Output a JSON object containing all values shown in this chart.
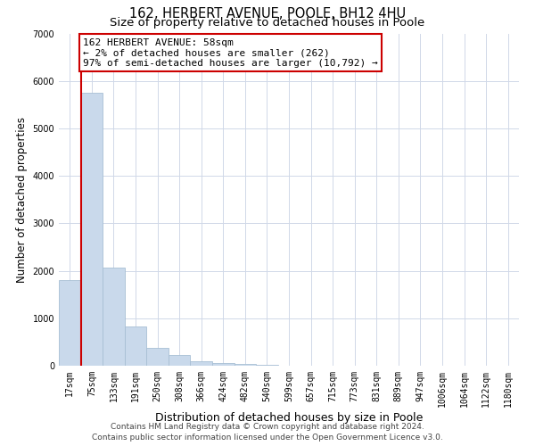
{
  "title": "162, HERBERT AVENUE, POOLE, BH12 4HU",
  "subtitle": "Size of property relative to detached houses in Poole",
  "xlabel": "Distribution of detached houses by size in Poole",
  "ylabel": "Number of detached properties",
  "bar_labels": [
    "17sqm",
    "75sqm",
    "133sqm",
    "191sqm",
    "250sqm",
    "308sqm",
    "366sqm",
    "424sqm",
    "482sqm",
    "540sqm",
    "599sqm",
    "657sqm",
    "715sqm",
    "773sqm",
    "831sqm",
    "889sqm",
    "947sqm",
    "1006sqm",
    "1064sqm",
    "1122sqm",
    "1180sqm"
  ],
  "bar_values": [
    1800,
    5750,
    2060,
    830,
    370,
    230,
    100,
    55,
    30,
    15,
    5,
    3,
    2,
    0,
    0,
    0,
    0,
    0,
    0,
    0,
    0
  ],
  "bar_color": "#c9d9eb",
  "bar_edge_color": "#a8bfd4",
  "marker_line_color": "#cc0000",
  "annotation_line1": "162 HERBERT AVENUE: 58sqm",
  "annotation_line2": "← 2% of detached houses are smaller (262)",
  "annotation_line3": "97% of semi-detached houses are larger (10,792) →",
  "annotation_box_color": "#ffffff",
  "annotation_box_edge_color": "#cc0000",
  "ylim": [
    0,
    7000
  ],
  "yticks": [
    0,
    1000,
    2000,
    3000,
    4000,
    5000,
    6000,
    7000
  ],
  "grid_color": "#d0d8e8",
  "background_color": "#ffffff",
  "footer_line1": "Contains HM Land Registry data © Crown copyright and database right 2024.",
  "footer_line2": "Contains public sector information licensed under the Open Government Licence v3.0.",
  "title_fontsize": 10.5,
  "subtitle_fontsize": 9.5,
  "xlabel_fontsize": 9,
  "ylabel_fontsize": 8.5,
  "tick_fontsize": 7,
  "annotation_fontsize": 8,
  "footer_fontsize": 6.5
}
